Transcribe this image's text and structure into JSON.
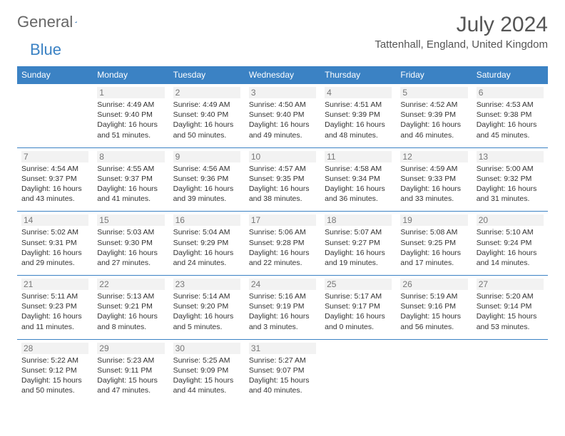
{
  "brand": {
    "word1": "General",
    "word2": "Blue"
  },
  "title": "July 2024",
  "location": "Tattenhall, England, United Kingdom",
  "colors": {
    "header_bg": "#3b82c4",
    "header_text": "#ffffff",
    "border": "#3b82c4",
    "daynum_bg": "#f2f2f2",
    "daynum_text": "#777777",
    "body_text": "#333333",
    "title_text": "#555555",
    "logo_gray": "#666666",
    "logo_blue": "#3b82c4",
    "page_bg": "#ffffff"
  },
  "weekdays": [
    "Sunday",
    "Monday",
    "Tuesday",
    "Wednesday",
    "Thursday",
    "Friday",
    "Saturday"
  ],
  "weeks": [
    [
      {
        "n": "",
        "sr": "",
        "ss": "",
        "dl": ""
      },
      {
        "n": "1",
        "sr": "Sunrise: 4:49 AM",
        "ss": "Sunset: 9:40 PM",
        "dl": "Daylight: 16 hours and 51 minutes."
      },
      {
        "n": "2",
        "sr": "Sunrise: 4:49 AM",
        "ss": "Sunset: 9:40 PM",
        "dl": "Daylight: 16 hours and 50 minutes."
      },
      {
        "n": "3",
        "sr": "Sunrise: 4:50 AM",
        "ss": "Sunset: 9:40 PM",
        "dl": "Daylight: 16 hours and 49 minutes."
      },
      {
        "n": "4",
        "sr": "Sunrise: 4:51 AM",
        "ss": "Sunset: 9:39 PM",
        "dl": "Daylight: 16 hours and 48 minutes."
      },
      {
        "n": "5",
        "sr": "Sunrise: 4:52 AM",
        "ss": "Sunset: 9:39 PM",
        "dl": "Daylight: 16 hours and 46 minutes."
      },
      {
        "n": "6",
        "sr": "Sunrise: 4:53 AM",
        "ss": "Sunset: 9:38 PM",
        "dl": "Daylight: 16 hours and 45 minutes."
      }
    ],
    [
      {
        "n": "7",
        "sr": "Sunrise: 4:54 AM",
        "ss": "Sunset: 9:37 PM",
        "dl": "Daylight: 16 hours and 43 minutes."
      },
      {
        "n": "8",
        "sr": "Sunrise: 4:55 AM",
        "ss": "Sunset: 9:37 PM",
        "dl": "Daylight: 16 hours and 41 minutes."
      },
      {
        "n": "9",
        "sr": "Sunrise: 4:56 AM",
        "ss": "Sunset: 9:36 PM",
        "dl": "Daylight: 16 hours and 39 minutes."
      },
      {
        "n": "10",
        "sr": "Sunrise: 4:57 AM",
        "ss": "Sunset: 9:35 PM",
        "dl": "Daylight: 16 hours and 38 minutes."
      },
      {
        "n": "11",
        "sr": "Sunrise: 4:58 AM",
        "ss": "Sunset: 9:34 PM",
        "dl": "Daylight: 16 hours and 36 minutes."
      },
      {
        "n": "12",
        "sr": "Sunrise: 4:59 AM",
        "ss": "Sunset: 9:33 PM",
        "dl": "Daylight: 16 hours and 33 minutes."
      },
      {
        "n": "13",
        "sr": "Sunrise: 5:00 AM",
        "ss": "Sunset: 9:32 PM",
        "dl": "Daylight: 16 hours and 31 minutes."
      }
    ],
    [
      {
        "n": "14",
        "sr": "Sunrise: 5:02 AM",
        "ss": "Sunset: 9:31 PM",
        "dl": "Daylight: 16 hours and 29 minutes."
      },
      {
        "n": "15",
        "sr": "Sunrise: 5:03 AM",
        "ss": "Sunset: 9:30 PM",
        "dl": "Daylight: 16 hours and 27 minutes."
      },
      {
        "n": "16",
        "sr": "Sunrise: 5:04 AM",
        "ss": "Sunset: 9:29 PM",
        "dl": "Daylight: 16 hours and 24 minutes."
      },
      {
        "n": "17",
        "sr": "Sunrise: 5:06 AM",
        "ss": "Sunset: 9:28 PM",
        "dl": "Daylight: 16 hours and 22 minutes."
      },
      {
        "n": "18",
        "sr": "Sunrise: 5:07 AM",
        "ss": "Sunset: 9:27 PM",
        "dl": "Daylight: 16 hours and 19 minutes."
      },
      {
        "n": "19",
        "sr": "Sunrise: 5:08 AM",
        "ss": "Sunset: 9:25 PM",
        "dl": "Daylight: 16 hours and 17 minutes."
      },
      {
        "n": "20",
        "sr": "Sunrise: 5:10 AM",
        "ss": "Sunset: 9:24 PM",
        "dl": "Daylight: 16 hours and 14 minutes."
      }
    ],
    [
      {
        "n": "21",
        "sr": "Sunrise: 5:11 AM",
        "ss": "Sunset: 9:23 PM",
        "dl": "Daylight: 16 hours and 11 minutes."
      },
      {
        "n": "22",
        "sr": "Sunrise: 5:13 AM",
        "ss": "Sunset: 9:21 PM",
        "dl": "Daylight: 16 hours and 8 minutes."
      },
      {
        "n": "23",
        "sr": "Sunrise: 5:14 AM",
        "ss": "Sunset: 9:20 PM",
        "dl": "Daylight: 16 hours and 5 minutes."
      },
      {
        "n": "24",
        "sr": "Sunrise: 5:16 AM",
        "ss": "Sunset: 9:19 PM",
        "dl": "Daylight: 16 hours and 3 minutes."
      },
      {
        "n": "25",
        "sr": "Sunrise: 5:17 AM",
        "ss": "Sunset: 9:17 PM",
        "dl": "Daylight: 16 hours and 0 minutes."
      },
      {
        "n": "26",
        "sr": "Sunrise: 5:19 AM",
        "ss": "Sunset: 9:16 PM",
        "dl": "Daylight: 15 hours and 56 minutes."
      },
      {
        "n": "27",
        "sr": "Sunrise: 5:20 AM",
        "ss": "Sunset: 9:14 PM",
        "dl": "Daylight: 15 hours and 53 minutes."
      }
    ],
    [
      {
        "n": "28",
        "sr": "Sunrise: 5:22 AM",
        "ss": "Sunset: 9:12 PM",
        "dl": "Daylight: 15 hours and 50 minutes."
      },
      {
        "n": "29",
        "sr": "Sunrise: 5:23 AM",
        "ss": "Sunset: 9:11 PM",
        "dl": "Daylight: 15 hours and 47 minutes."
      },
      {
        "n": "30",
        "sr": "Sunrise: 5:25 AM",
        "ss": "Sunset: 9:09 PM",
        "dl": "Daylight: 15 hours and 44 minutes."
      },
      {
        "n": "31",
        "sr": "Sunrise: 5:27 AM",
        "ss": "Sunset: 9:07 PM",
        "dl": "Daylight: 15 hours and 40 minutes."
      },
      {
        "n": "",
        "sr": "",
        "ss": "",
        "dl": ""
      },
      {
        "n": "",
        "sr": "",
        "ss": "",
        "dl": ""
      },
      {
        "n": "",
        "sr": "",
        "ss": "",
        "dl": ""
      }
    ]
  ]
}
